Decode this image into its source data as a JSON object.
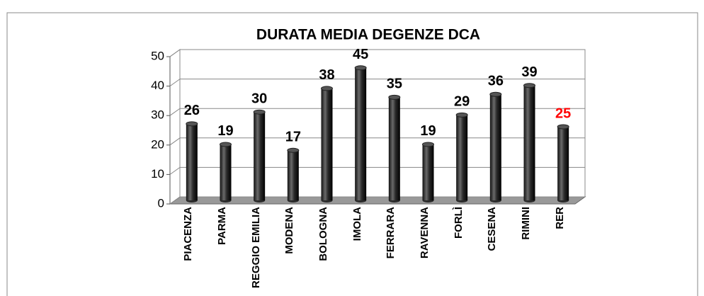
{
  "chart_data": {
    "type": "bar",
    "title": "DURATA MEDIA DEGENZE DCA",
    "categories": [
      "PIACENZA",
      "PARMA",
      "REGGIO EMILIA",
      "MODENA",
      "BOLOGNA",
      "IMOLA",
      "FERRARA",
      "RAVENNA",
      "FORLÌ",
      "CESENA",
      "RIMINI",
      "RER"
    ],
    "values": [
      26,
      19,
      30,
      17,
      38,
      45,
      35,
      19,
      29,
      36,
      39,
      25
    ],
    "color": "#2b2b2b",
    "label_colors": [
      "#000000",
      "#000000",
      "#000000",
      "#000000",
      "#000000",
      "#000000",
      "#000000",
      "#000000",
      "#000000",
      "#000000",
      "#000000",
      "#ff0000"
    ],
    "ylim": [
      0,
      50
    ],
    "yticks": [
      0,
      10,
      20,
      30,
      40,
      50
    ],
    "grid": true
  }
}
